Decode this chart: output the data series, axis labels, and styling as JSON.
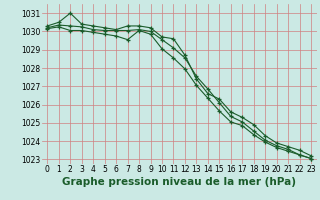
{
  "x": [
    0,
    1,
    2,
    3,
    4,
    5,
    6,
    7,
    8,
    9,
    10,
    11,
    12,
    13,
    14,
    15,
    16,
    17,
    18,
    19,
    20,
    21,
    22,
    23
  ],
  "y_max": [
    1030.3,
    1030.5,
    1031.0,
    1030.4,
    1030.3,
    1030.2,
    1030.1,
    1030.3,
    1030.3,
    1030.2,
    1029.7,
    1029.6,
    1028.7,
    1027.4,
    1026.6,
    1026.3,
    1025.6,
    1025.3,
    1024.9,
    1024.3,
    1023.9,
    1023.7,
    1023.5,
    1023.2
  ],
  "y_mid": [
    1030.2,
    1030.35,
    1030.3,
    1030.25,
    1030.1,
    1030.05,
    1030.05,
    1030.05,
    1030.1,
    1030.0,
    1029.55,
    1029.1,
    1028.55,
    1027.55,
    1026.85,
    1026.1,
    1025.35,
    1025.05,
    1024.55,
    1024.05,
    1023.75,
    1023.55,
    1023.25,
    1023.05
  ],
  "y_min": [
    1030.15,
    1030.25,
    1030.05,
    1030.05,
    1029.95,
    1029.85,
    1029.75,
    1029.55,
    1030.05,
    1029.85,
    1029.05,
    1028.55,
    1027.95,
    1027.05,
    1026.35,
    1025.65,
    1025.05,
    1024.85,
    1024.35,
    1023.95,
    1023.65,
    1023.45,
    1023.25,
    1023.05
  ],
  "bg_color": "#cbe9e4",
  "grid_color": "#d08080",
  "line_color": "#1a5c2a",
  "marker": "+",
  "xlabel": "Graphe pression niveau de la mer (hPa)",
  "ylim": [
    1022.75,
    1031.5
  ],
  "xlim": [
    -0.5,
    23.5
  ],
  "yticks": [
    1023,
    1024,
    1025,
    1026,
    1027,
    1028,
    1029,
    1030,
    1031
  ],
  "xticks": [
    0,
    1,
    2,
    3,
    4,
    5,
    6,
    7,
    8,
    9,
    10,
    11,
    12,
    13,
    14,
    15,
    16,
    17,
    18,
    19,
    20,
    21,
    22,
    23
  ],
  "xtick_labels": [
    "0",
    "1",
    "2",
    "3",
    "4",
    "5",
    "6",
    "7",
    "8",
    "9",
    "10",
    "11",
    "12",
    "13",
    "14",
    "15",
    "16",
    "17",
    "18",
    "19",
    "20",
    "21",
    "22",
    "23"
  ],
  "tick_fontsize": 5.5,
  "xlabel_fontsize": 7.5,
  "linewidth": 0.8,
  "markersize": 3.5,
  "markeredgewidth": 0.9
}
